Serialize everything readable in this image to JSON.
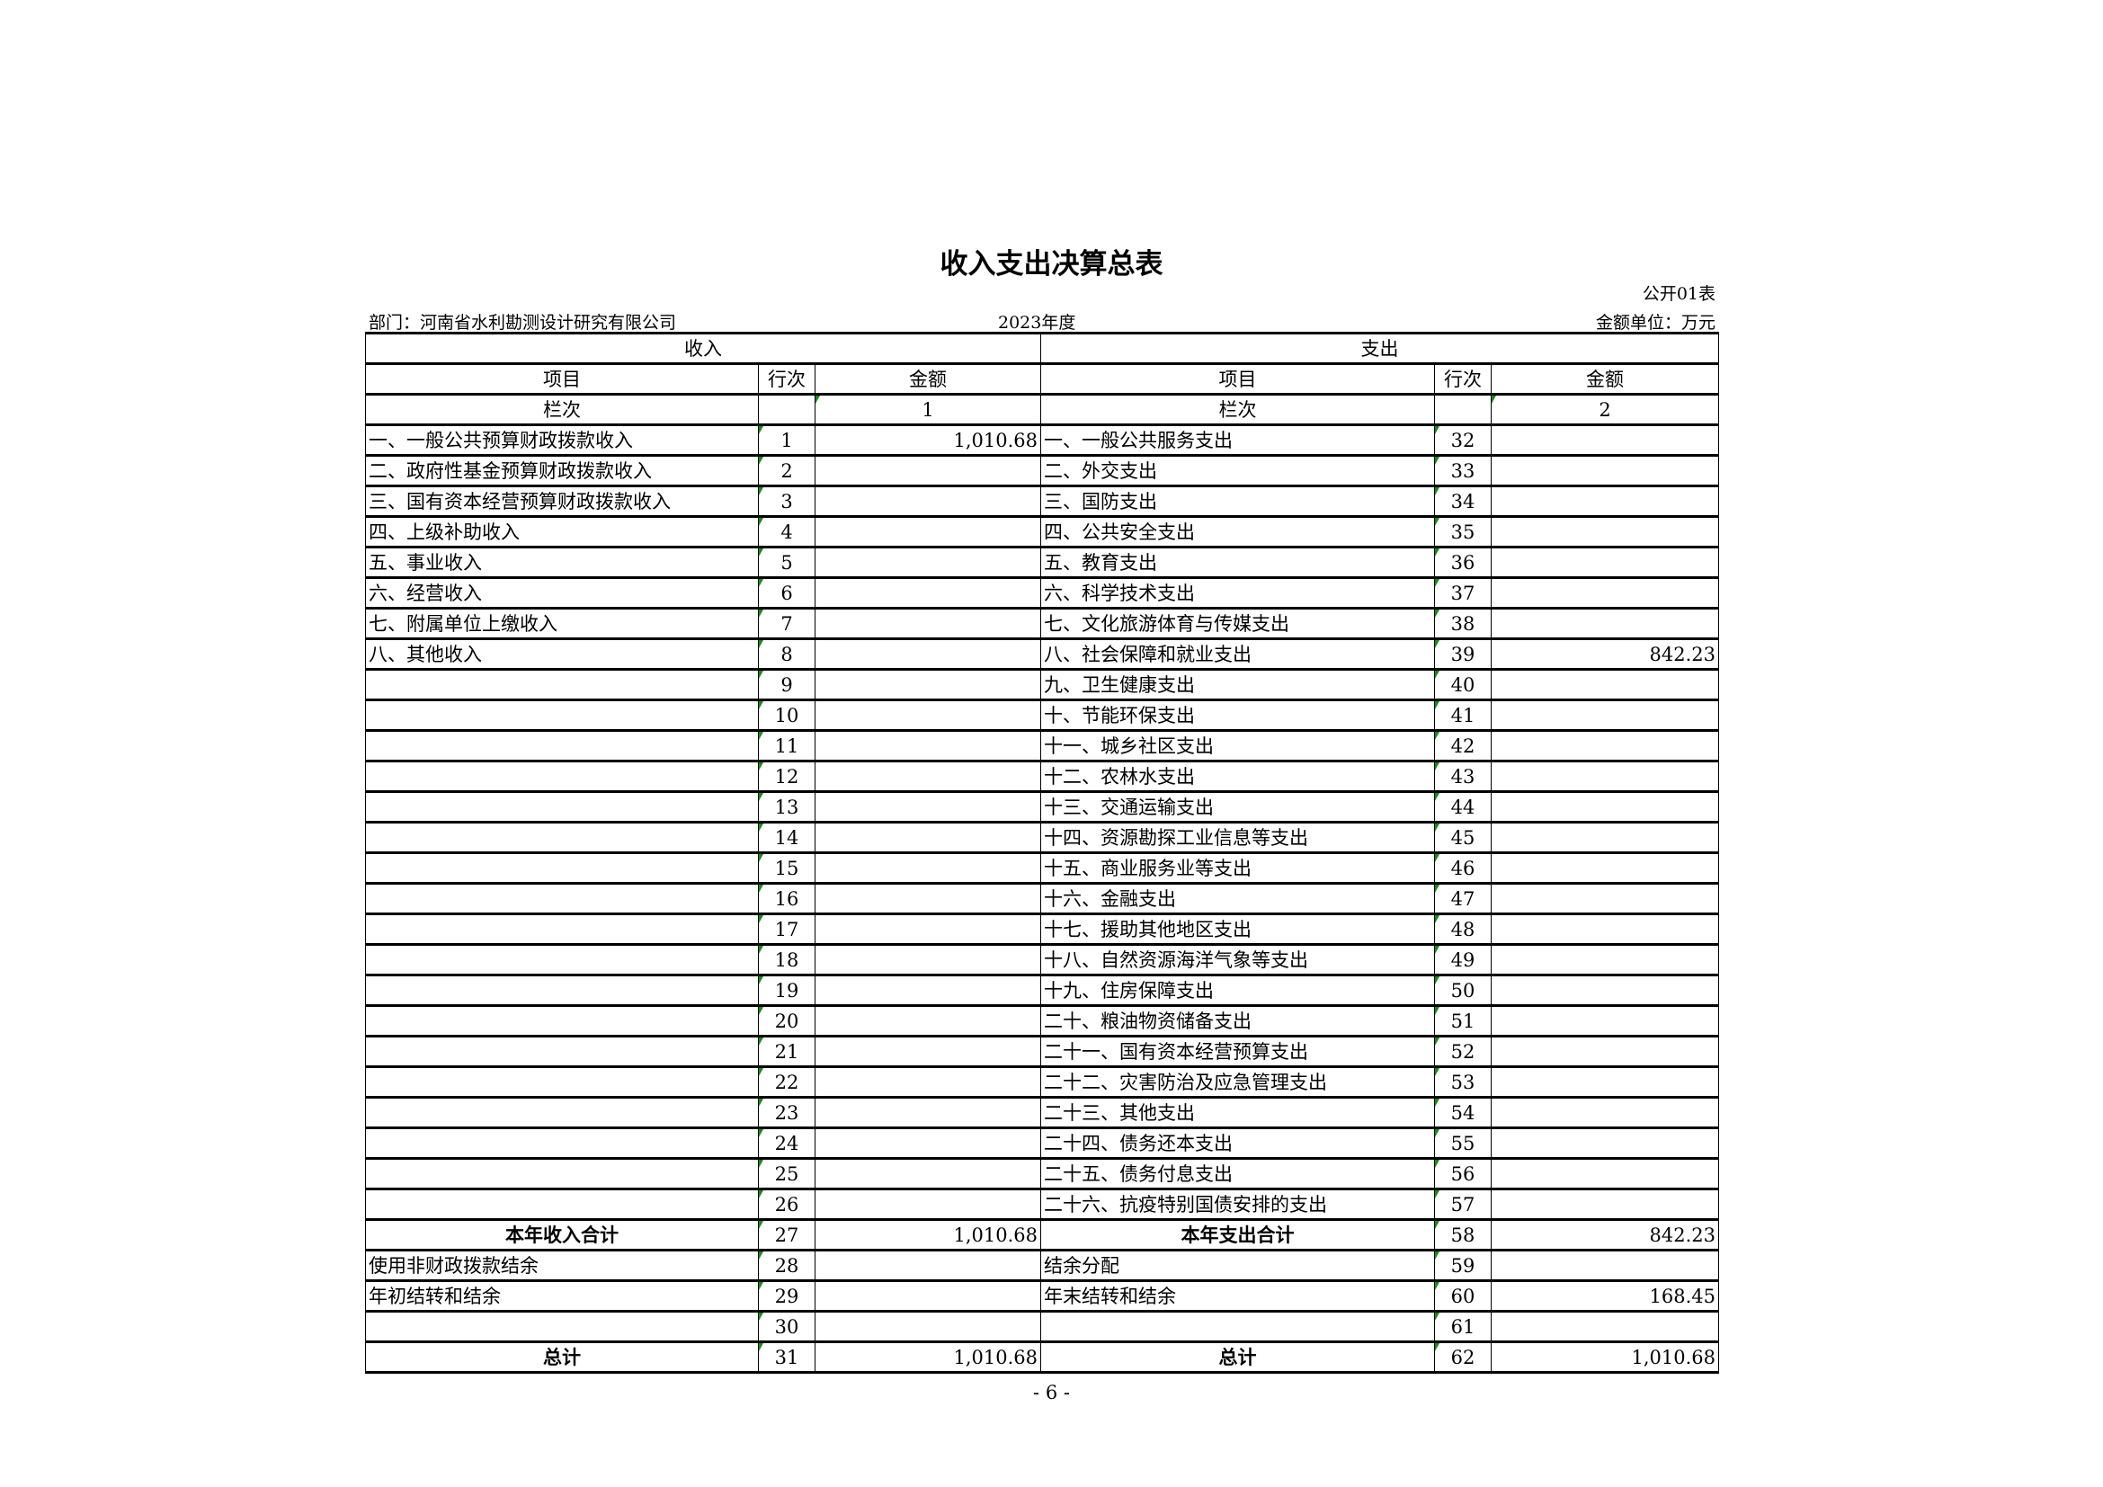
{
  "title": "收入支出决算总表",
  "form_no": "公开01表",
  "department": "部门：河南省水利勘测设计研究有限公司",
  "year": "2023年度",
  "unit": "金额单位：万元",
  "headers": {
    "income": "收入",
    "expense": "支出",
    "item": "项目",
    "line": "行次",
    "amount": "金额",
    "column_label": "栏次",
    "income_col": "1",
    "expense_col": "2"
  },
  "rows": [
    {
      "in_item": "一、一般公共预算财政拨款收入",
      "in_no": "1",
      "in_amt": "1,010.68",
      "ex_item": "一、一般公共服务支出",
      "ex_no": "32",
      "ex_amt": ""
    },
    {
      "in_item": "二、政府性基金预算财政拨款收入",
      "in_no": "2",
      "in_amt": "",
      "ex_item": "二、外交支出",
      "ex_no": "33",
      "ex_amt": ""
    },
    {
      "in_item": "三、国有资本经营预算财政拨款收入",
      "in_no": "3",
      "in_amt": "",
      "ex_item": "三、国防支出",
      "ex_no": "34",
      "ex_amt": ""
    },
    {
      "in_item": "四、上级补助收入",
      "in_no": "4",
      "in_amt": "",
      "ex_item": "四、公共安全支出",
      "ex_no": "35",
      "ex_amt": ""
    },
    {
      "in_item": "五、事业收入",
      "in_no": "5",
      "in_amt": "",
      "ex_item": "五、教育支出",
      "ex_no": "36",
      "ex_amt": ""
    },
    {
      "in_item": "六、经营收入",
      "in_no": "6",
      "in_amt": "",
      "ex_item": "六、科学技术支出",
      "ex_no": "37",
      "ex_amt": ""
    },
    {
      "in_item": "七、附属单位上缴收入",
      "in_no": "7",
      "in_amt": "",
      "ex_item": "七、文化旅游体育与传媒支出",
      "ex_no": "38",
      "ex_amt": ""
    },
    {
      "in_item": "八、其他收入",
      "in_no": "8",
      "in_amt": "",
      "ex_item": "八、社会保障和就业支出",
      "ex_no": "39",
      "ex_amt": "842.23"
    },
    {
      "in_item": "",
      "in_no": "9",
      "in_amt": "",
      "ex_item": "九、卫生健康支出",
      "ex_no": "40",
      "ex_amt": ""
    },
    {
      "in_item": "",
      "in_no": "10",
      "in_amt": "",
      "ex_item": "十、节能环保支出",
      "ex_no": "41",
      "ex_amt": ""
    },
    {
      "in_item": "",
      "in_no": "11",
      "in_amt": "",
      "ex_item": "十一、城乡社区支出",
      "ex_no": "42",
      "ex_amt": ""
    },
    {
      "in_item": "",
      "in_no": "12",
      "in_amt": "",
      "ex_item": "十二、农林水支出",
      "ex_no": "43",
      "ex_amt": ""
    },
    {
      "in_item": "",
      "in_no": "13",
      "in_amt": "",
      "ex_item": "十三、交通运输支出",
      "ex_no": "44",
      "ex_amt": ""
    },
    {
      "in_item": "",
      "in_no": "14",
      "in_amt": "",
      "ex_item": "十四、资源勘探工业信息等支出",
      "ex_no": "45",
      "ex_amt": ""
    },
    {
      "in_item": "",
      "in_no": "15",
      "in_amt": "",
      "ex_item": "十五、商业服务业等支出",
      "ex_no": "46",
      "ex_amt": ""
    },
    {
      "in_item": "",
      "in_no": "16",
      "in_amt": "",
      "ex_item": "十六、金融支出",
      "ex_no": "47",
      "ex_amt": ""
    },
    {
      "in_item": "",
      "in_no": "17",
      "in_amt": "",
      "ex_item": "十七、援助其他地区支出",
      "ex_no": "48",
      "ex_amt": ""
    },
    {
      "in_item": "",
      "in_no": "18",
      "in_amt": "",
      "ex_item": "十八、自然资源海洋气象等支出",
      "ex_no": "49",
      "ex_amt": ""
    },
    {
      "in_item": "",
      "in_no": "19",
      "in_amt": "",
      "ex_item": "十九、住房保障支出",
      "ex_no": "50",
      "ex_amt": ""
    },
    {
      "in_item": "",
      "in_no": "20",
      "in_amt": "",
      "ex_item": "二十、粮油物资储备支出",
      "ex_no": "51",
      "ex_amt": ""
    },
    {
      "in_item": "",
      "in_no": "21",
      "in_amt": "",
      "ex_item": "二十一、国有资本经营预算支出",
      "ex_no": "52",
      "ex_amt": ""
    },
    {
      "in_item": "",
      "in_no": "22",
      "in_amt": "",
      "ex_item": "二十二、灾害防治及应急管理支出",
      "ex_no": "53",
      "ex_amt": ""
    },
    {
      "in_item": "",
      "in_no": "23",
      "in_amt": "",
      "ex_item": "二十三、其他支出",
      "ex_no": "54",
      "ex_amt": ""
    },
    {
      "in_item": "",
      "in_no": "24",
      "in_amt": "",
      "ex_item": "二十四、债务还本支出",
      "ex_no": "55",
      "ex_amt": ""
    },
    {
      "in_item": "",
      "in_no": "25",
      "in_amt": "",
      "ex_item": "二十五、债务付息支出",
      "ex_no": "56",
      "ex_amt": ""
    },
    {
      "in_item": "",
      "in_no": "26",
      "in_amt": "",
      "ex_item": "二十六、抗疫特别国债安排的支出",
      "ex_no": "57",
      "ex_amt": ""
    },
    {
      "in_item": "本年收入合计",
      "in_no": "27",
      "in_amt": "1,010.68",
      "ex_item": "本年支出合计",
      "ex_no": "58",
      "ex_amt": "842.23",
      "bold": true
    },
    {
      "in_item": "使用非财政拨款结余",
      "in_no": "28",
      "in_amt": "",
      "ex_item": "结余分配",
      "ex_no": "59",
      "ex_amt": ""
    },
    {
      "in_item": "年初结转和结余",
      "in_no": "29",
      "in_amt": "",
      "ex_item": "年末结转和结余",
      "ex_no": "60",
      "ex_amt": "168.45"
    },
    {
      "in_item": "",
      "in_no": "30",
      "in_amt": "",
      "ex_item": "",
      "ex_no": "61",
      "ex_amt": ""
    },
    {
      "in_item": "总计",
      "in_no": "31",
      "in_amt": "1,010.68",
      "ex_item": "总计",
      "ex_no": "62",
      "ex_amt": "1,010.68",
      "bold": true
    }
  ],
  "page_number": "- 6 -",
  "colors": {
    "cell_marker": "#1a8a1a",
    "border": "#000000"
  }
}
